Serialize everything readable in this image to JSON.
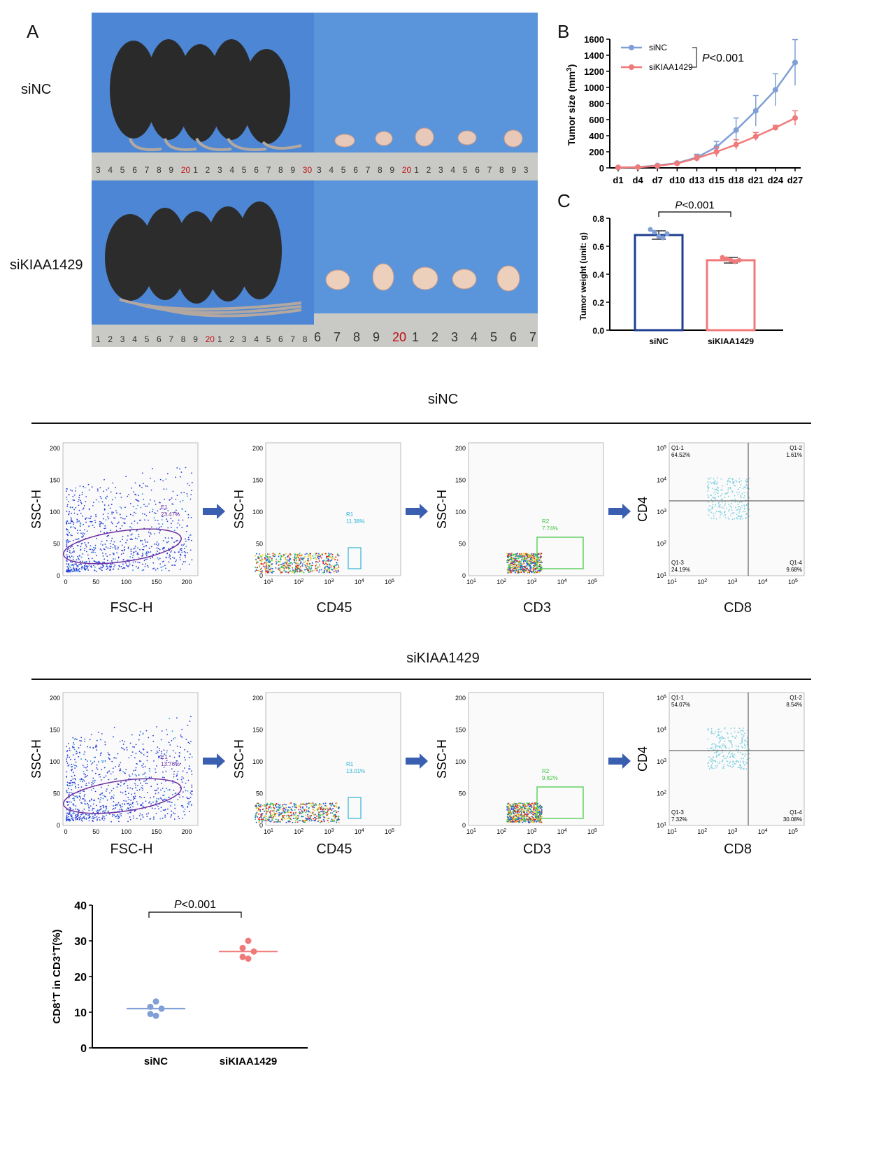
{
  "panels": {
    "A": "A",
    "B": "B",
    "C": "C"
  },
  "photo_groups": [
    "siNC",
    "siKIAA1429"
  ],
  "ruler_top_numbers": [
    "3",
    "4",
    "5",
    "6",
    "7",
    "8",
    "9",
    "20",
    "1",
    "2",
    "3",
    "4",
    "5",
    "6",
    "7",
    "8",
    "9",
    "30"
  ],
  "ruler_top_right_numbers": [
    "3",
    "4",
    "5",
    "6",
    "7",
    "8",
    "9",
    "20",
    "1",
    "2",
    "3",
    "4",
    "5",
    "6",
    "7",
    "8",
    "9",
    "3"
  ],
  "ruler_bottom_numbers": [
    "1",
    "2",
    "3",
    "4",
    "5",
    "6",
    "7",
    "8",
    "9",
    "20",
    "1",
    "2",
    "3",
    "4",
    "5",
    "6",
    "7",
    "8"
  ],
  "ruler_bottom_right_numbers": [
    "6",
    "7",
    "8",
    "9",
    "20",
    "1",
    "2",
    "3",
    "4",
    "5",
    "6",
    "7"
  ],
  "colors": {
    "siNC": "#7f9fd6",
    "siKIAA1429": "#f07a7a",
    "bar_siNC": "#1f3f8f",
    "background_photo": "#4c86d4"
  },
  "chart_data": [
    {
      "type": "line",
      "panel": "B",
      "ylabel": "Tumor size (mm3)",
      "categories": [
        "d1",
        "d4",
        "d7",
        "d10",
        "d13",
        "d15",
        "d18",
        "d21",
        "d24",
        "d27"
      ],
      "ylim": [
        0,
        1600
      ],
      "yticks": [
        "0",
        "200",
        "400",
        "600",
        "800",
        "1000",
        "1200",
        "1400",
        "1600"
      ],
      "series": [
        {
          "name": "siNC",
          "values": [
            5,
            10,
            30,
            60,
            130,
            260,
            470,
            710,
            970,
            1310
          ],
          "errors": [
            2,
            4,
            10,
            15,
            40,
            70,
            150,
            190,
            200,
            285
          ]
        },
        {
          "name": "siKIAA1429",
          "values": [
            5,
            8,
            25,
            55,
            120,
            200,
            290,
            390,
            500,
            620
          ],
          "errors": [
            2,
            3,
            8,
            12,
            40,
            60,
            60,
            50,
            30,
            90
          ]
        }
      ],
      "annotation": "P<0.001",
      "legend": "top-left"
    },
    {
      "type": "bar",
      "panel": "C",
      "ylabel": "Tumor weight (unit: g)",
      "categories": [
        "siNC",
        "siKIAA1429"
      ],
      "values": [
        0.68,
        0.5
      ],
      "errors": [
        0.03,
        0.02
      ],
      "points": [
        [
          0.72,
          0.7,
          0.67,
          0.66,
          0.69
        ],
        [
          0.52,
          0.51,
          0.5,
          0.49,
          0.5
        ]
      ],
      "ylim": [
        0,
        0.8
      ],
      "yticks": [
        "0.0",
        "0.2",
        "0.4",
        "0.6",
        "0.8"
      ],
      "annotation": "P<0.001"
    },
    {
      "type": "scatter",
      "panel": "flow-summary",
      "ylabel": "CD8+T in CD3+T(%)",
      "categories": [
        "siNC",
        "siKIAA1429"
      ],
      "means": [
        11,
        27
      ],
      "points": [
        [
          13,
          11.5,
          11,
          9.5,
          9
        ],
        [
          30,
          28,
          27,
          25.5,
          25
        ]
      ],
      "ylim": [
        0,
        40
      ],
      "yticks": [
        "0",
        "10",
        "20",
        "30",
        "40"
      ],
      "annotation": "P<0.001"
    }
  ],
  "flow": {
    "groups": [
      {
        "title": "siNC",
        "plots": [
          {
            "xlabel": "FSC-H",
            "ylabel": "SSC-H",
            "gate": "E1",
            "pct": "23.47%"
          },
          {
            "xlabel": "CD45",
            "ylabel": "SSC-H",
            "gate": "R1",
            "pct": "11.38%"
          },
          {
            "xlabel": "CD3",
            "ylabel": "SSC-H",
            "gate": "R2",
            "pct": "7.74%"
          },
          {
            "xlabel": "CD8",
            "ylabel": "CD4",
            "q1": "Q1-1",
            "q1pct": "64.52%",
            "q2": "Q1-2",
            "q2pct": "1.61%",
            "q3": "Q1-3",
            "q3pct": "24.19%",
            "q4": "Q1-4",
            "q4pct": "9.68%"
          }
        ]
      },
      {
        "title": "siKIAA1429",
        "plots": [
          {
            "xlabel": "FSC-H",
            "ylabel": "SSC-H",
            "gate": "E1",
            "pct": "13.76%"
          },
          {
            "xlabel": "CD45",
            "ylabel": "SSC-H",
            "gate": "R1",
            "pct": "13.01%"
          },
          {
            "xlabel": "CD3",
            "ylabel": "SSC-H",
            "gate": "R2",
            "pct": "9.82%"
          },
          {
            "xlabel": "CD8",
            "ylabel": "CD4",
            "q1": "Q1-1",
            "q1pct": "54.07%",
            "q2": "Q1-2",
            "q2pct": "8.54%",
            "q3": "Q1-3",
            "q3pct": "7.32%",
            "q4": "Q1-4",
            "q4pct": "30.08%"
          }
        ]
      }
    ],
    "linear_ticks": [
      "0",
      "50",
      "100",
      "150",
      "200"
    ],
    "log_ticks": [
      "10",
      "10",
      "10",
      "10",
      "10"
    ],
    "log_exps": [
      "1",
      "2",
      "3",
      "4",
      "5"
    ]
  }
}
